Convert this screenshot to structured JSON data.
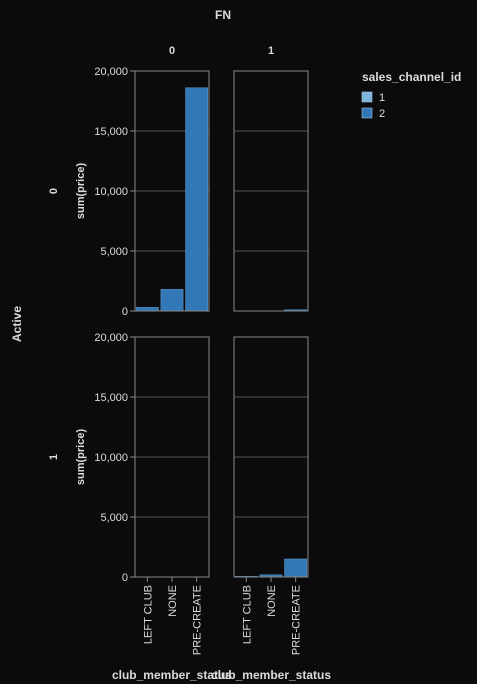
{
  "chart_data": {
    "type": "bar",
    "title": "FN",
    "row_title": "Active",
    "column_facets": [
      "0",
      "1"
    ],
    "row_facets": [
      "0",
      "1"
    ],
    "categories": [
      "LEFT CLUB",
      "NONE",
      "PRE-CREATE"
    ],
    "ylabel": "sum(price)",
    "xlabel": "club_member_status",
    "ylim": [
      0,
      20000
    ],
    "yticks": [
      "0",
      "5,000",
      "10,000",
      "15,000",
      "20,000"
    ],
    "ytick_values": [
      0,
      5000,
      10000,
      15000,
      20000
    ],
    "grid": true,
    "legend": {
      "title": "sales_channel_id",
      "placement": "top-right",
      "items": [
        {
          "label": "1",
          "color": "#7db5dc"
        },
        {
          "label": "2",
          "color": "#3277b6"
        }
      ]
    },
    "panels": [
      {
        "row": "0",
        "col": "0",
        "values": [
          300,
          1800,
          18600
        ]
      },
      {
        "row": "0",
        "col": "1",
        "values": [
          0,
          0,
          100
        ]
      },
      {
        "row": "1",
        "col": "0",
        "values": [
          0,
          0,
          0
        ]
      },
      {
        "row": "1",
        "col": "1",
        "values": [
          50,
          180,
          1500
        ]
      }
    ]
  },
  "colors": {
    "background": "#0b0b0d",
    "text": "#dcdcdc",
    "axis": "#888888",
    "grid": "#555555",
    "bar": "#3277b6",
    "bar_stroke": "#5c94c8"
  }
}
